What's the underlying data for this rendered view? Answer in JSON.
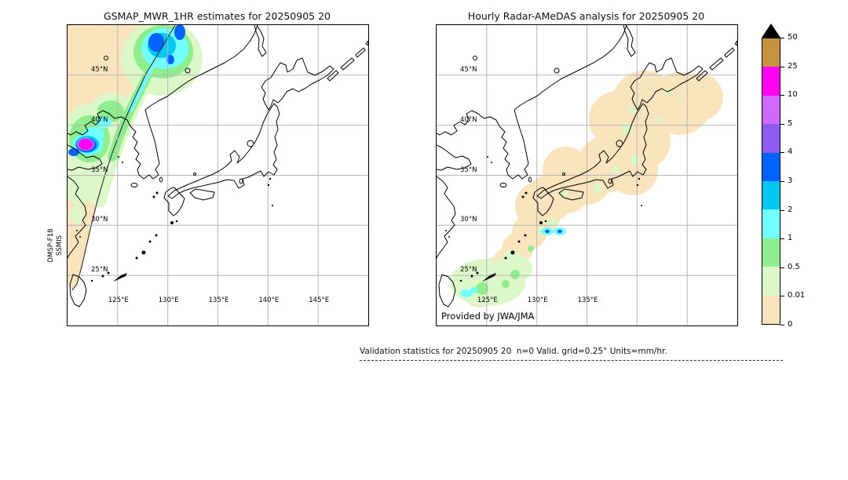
{
  "left_panel": {
    "title": "GSMAP_MWR_1HR estimates for 20250905 20",
    "sensor_line1": "DMSP-F18",
    "sensor_line2": "SSMIS",
    "lat_labels": [
      "45°N",
      "40°N",
      "35°N",
      "30°N",
      "25°N"
    ],
    "lon_labels": [
      "125°E",
      "130°E",
      "135°E",
      "140°E",
      "145°E"
    ]
  },
  "right_panel": {
    "title": "Hourly Radar-AMeDAS analysis for 20250905 20",
    "credit": "Provided by JWA/JMA",
    "lat_labels": [
      "45°N",
      "40°N",
      "35°N",
      "30°N",
      "25°N"
    ],
    "lon_labels": [
      "125°E",
      "130°E",
      "135°E"
    ]
  },
  "footer": {
    "validation_text": "Validation statistics for 20250905 20  n=0 Valid. grid=0.25° Units=mm/hr."
  },
  "colorbar": {
    "tick_labels": [
      "50",
      "25",
      "10",
      "5",
      "4",
      "3",
      "2",
      "1",
      "0.5",
      "0.01",
      "0"
    ],
    "segment_colors_top_to_bottom": [
      "#c69440",
      "#ff00f0",
      "#d06aff",
      "#8c5cf0",
      "#0063ff",
      "#00c8f2",
      "#72ffff",
      "#8eee8e",
      "#dcf7c8",
      "#f9e4bd"
    ],
    "overflow_color": "#000000"
  },
  "chart_data": {
    "type": "heatmap",
    "subtype": "geographic-precipitation-comparison",
    "units": "mm/hr",
    "grid_resolution_deg": 0.25,
    "map_extent": {
      "lon_min": 120,
      "lon_max": 150,
      "lat_min": 20,
      "lat_max": 50
    },
    "gridline_lons": [
      125,
      130,
      135,
      140,
      145
    ],
    "gridline_lats": [
      25,
      30,
      35,
      40,
      45
    ],
    "color_levels": [
      0,
      0.01,
      0.5,
      1,
      2,
      3,
      4,
      5,
      10,
      25,
      50
    ],
    "level_colors_low_to_high": [
      "#f9e4bd",
      "#dcf7c8",
      "#8eee8e",
      "#72ffff",
      "#00c8f2",
      "#0063ff",
      "#8c5cf0",
      "#d06aff",
      "#ff00f0",
      "#c69440",
      "#000000"
    ],
    "panels": [
      {
        "title": "GSMAP_MWR_1HR estimates for 20250905 20",
        "source": "DMSP-F18 SSMIS",
        "coverage": "Diagonal satellite swath over the western third of the domain (~120-131°E), background trace values 0-0.01 mm/hr",
        "features": [
          {
            "lon": 121.9,
            "lat": 38.0,
            "value_range": "10-25",
            "desc": "intense magenta cell over Bohai/Liaodong area"
          },
          {
            "lon": 120.7,
            "lat": 37.4,
            "value_range": "3-4",
            "desc": "blue cell beside magenta core"
          },
          {
            "lon": 129.0,
            "lat": 47.8,
            "value_range": "3-4",
            "desc": "blue cells in cyan cluster at top of swath"
          },
          {
            "lon": 127.0,
            "lat": 40.0,
            "value_range": "1-2",
            "desc": "cyan band along eastern swath edge"
          },
          {
            "lon": 122.0,
            "lat": 38.5,
            "value_range": "0.5-2",
            "desc": "broad green/cyan rain area"
          }
        ]
      },
      {
        "title": "Hourly Radar-AMeDAS analysis for 20250905 20",
        "source": "JWA/JMA radar composite",
        "coverage": "Scalloped radar coverage chain following the Japanese archipelago from Hokkaido to the Ryukyu Islands, mostly trace 0-0.01 mm/hr",
        "features": [
          {
            "lon": 131.1,
            "lat": 29.4,
            "value_range": "1-3",
            "desc": "two cyan cells with blue cores south of Kyushu"
          },
          {
            "lon": 125.5,
            "lat": 24.5,
            "value_range": "0.01-1",
            "desc": "light green area around Okinawa/Miyako with small cyan cells"
          },
          {
            "lon": 139.0,
            "lat": 37.0,
            "value_range": "0.01-0.5",
            "desc": "scattered light green patches over central Japan"
          }
        ]
      }
    ],
    "statistics_note": {
      "n": 0,
      "valid_grid_deg": 0.25,
      "units": "mm/hr"
    }
  }
}
